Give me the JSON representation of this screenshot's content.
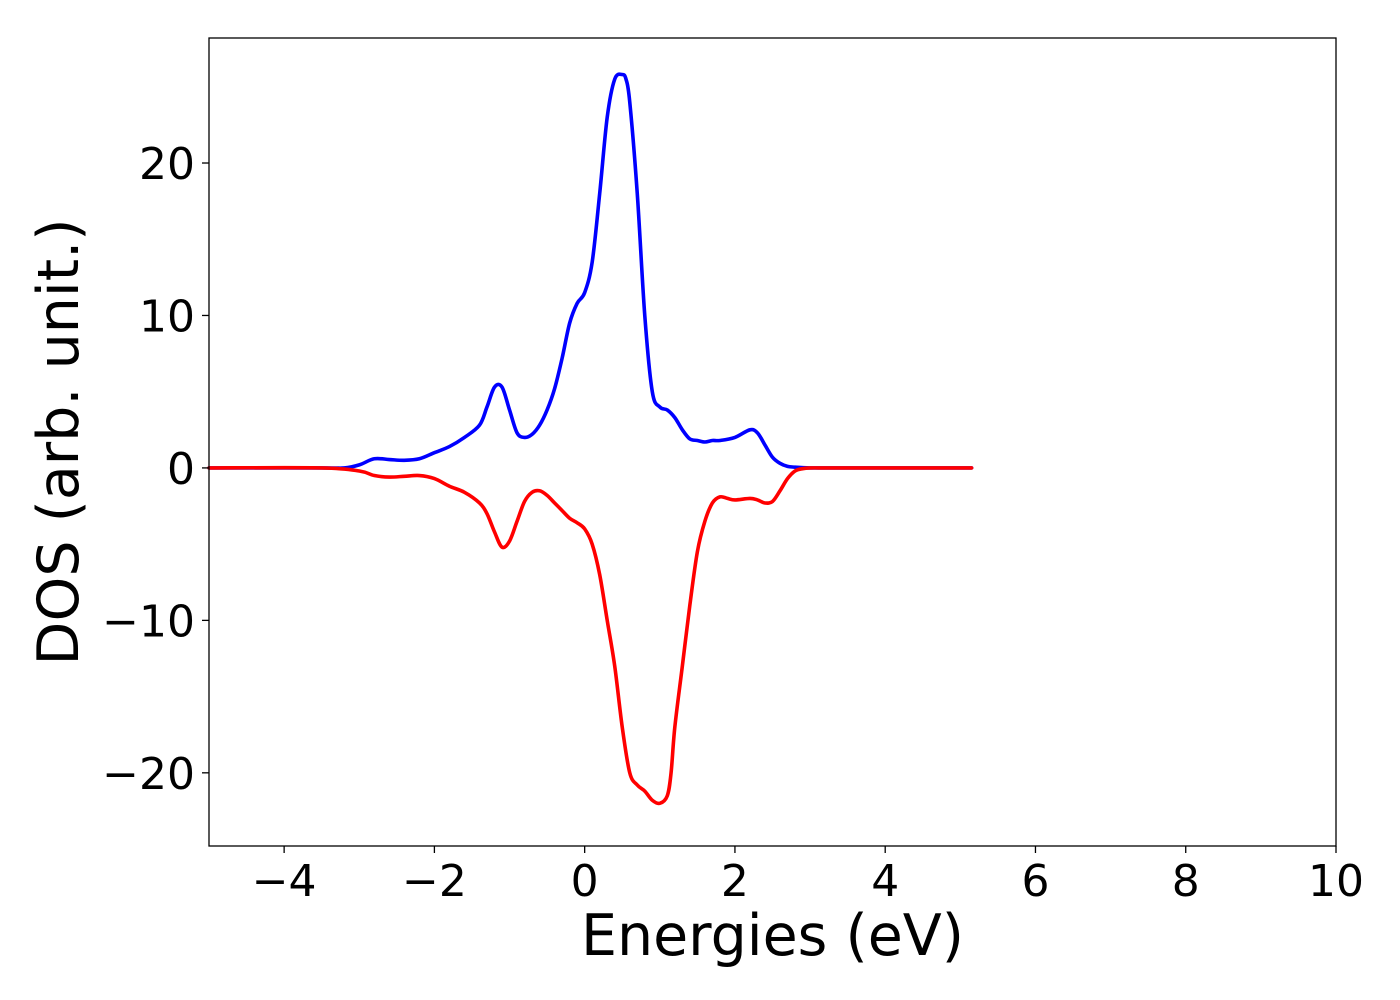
{
  "chart_data": {
    "type": "line",
    "title": "",
    "xlabel": "Energies (eV)",
    "ylabel": "DOS (arb. unit.)",
    "xlim": [
      -5,
      10
    ],
    "ylim": [
      -24.8,
      28.2
    ],
    "grid": false,
    "legend": "none",
    "xticks": [
      {
        "value": -4,
        "label": "−4"
      },
      {
        "value": -2,
        "label": "−2"
      },
      {
        "value": 0,
        "label": "0"
      },
      {
        "value": 2,
        "label": "2"
      },
      {
        "value": 4,
        "label": "4"
      },
      {
        "value": 6,
        "label": "6"
      },
      {
        "value": 8,
        "label": "8"
      },
      {
        "value": 10,
        "label": "10"
      }
    ],
    "yticks": [
      {
        "value": -20,
        "label": "−20"
      },
      {
        "value": -10,
        "label": "−10"
      },
      {
        "value": 0,
        "label": "0"
      },
      {
        "value": 10,
        "label": "10"
      },
      {
        "value": 20,
        "label": "20"
      }
    ],
    "series": [
      {
        "color": "#0000ff",
        "x": [
          -5.0,
          -3.5,
          -3.2,
          -3.0,
          -2.8,
          -2.6,
          -2.4,
          -2.2,
          -2.0,
          -1.8,
          -1.6,
          -1.4,
          -1.3,
          -1.2,
          -1.1,
          -1.0,
          -0.9,
          -0.8,
          -0.7,
          -0.6,
          -0.5,
          -0.4,
          -0.3,
          -0.2,
          -0.1,
          0.0,
          0.1,
          0.2,
          0.3,
          0.4,
          0.5,
          0.55,
          0.6,
          0.7,
          0.8,
          0.9,
          1.0,
          1.1,
          1.2,
          1.3,
          1.4,
          1.5,
          1.6,
          1.7,
          1.8,
          2.0,
          2.2,
          2.3,
          2.4,
          2.5,
          2.6,
          2.7,
          2.8,
          3.0,
          3.2,
          3.5,
          4.0,
          4.5,
          5.15
        ],
        "y": [
          0.0,
          0.0,
          0.0,
          0.2,
          0.6,
          0.55,
          0.5,
          0.6,
          1.0,
          1.4,
          2.0,
          2.8,
          4.0,
          5.3,
          5.3,
          3.8,
          2.3,
          2.0,
          2.2,
          2.8,
          3.8,
          5.2,
          7.2,
          9.5,
          10.8,
          11.5,
          13.5,
          18.0,
          23.0,
          25.5,
          25.8,
          25.5,
          24.0,
          18.0,
          10.0,
          5.0,
          4.0,
          3.8,
          3.3,
          2.5,
          1.9,
          1.8,
          1.7,
          1.8,
          1.8,
          2.0,
          2.5,
          2.3,
          1.5,
          0.7,
          0.3,
          0.1,
          0.05,
          0.0,
          0.0,
          0.0,
          0.0,
          0.0,
          0.0
        ]
      },
      {
        "color": "#ff0000",
        "x": [
          -5.0,
          -3.5,
          -3.0,
          -2.8,
          -2.6,
          -2.4,
          -2.2,
          -2.0,
          -1.8,
          -1.6,
          -1.4,
          -1.3,
          -1.2,
          -1.1,
          -1.0,
          -0.9,
          -0.8,
          -0.7,
          -0.6,
          -0.5,
          -0.4,
          -0.3,
          -0.2,
          -0.1,
          0.0,
          0.1,
          0.2,
          0.3,
          0.4,
          0.5,
          0.6,
          0.7,
          0.8,
          0.9,
          1.0,
          1.1,
          1.15,
          1.2,
          1.3,
          1.4,
          1.5,
          1.6,
          1.7,
          1.8,
          1.9,
          2.0,
          2.2,
          2.3,
          2.4,
          2.5,
          2.6,
          2.7,
          2.8,
          2.9,
          3.0,
          3.2,
          3.5,
          4.0,
          5.15
        ],
        "y": [
          0.0,
          0.0,
          -0.2,
          -0.5,
          -0.6,
          -0.55,
          -0.5,
          -0.7,
          -1.2,
          -1.6,
          -2.3,
          -3.0,
          -4.2,
          -5.2,
          -4.8,
          -3.5,
          -2.2,
          -1.6,
          -1.5,
          -1.8,
          -2.3,
          -2.8,
          -3.3,
          -3.6,
          -4.0,
          -5.0,
          -7.0,
          -10.0,
          -13.0,
          -17.0,
          -20.0,
          -20.8,
          -21.2,
          -21.8,
          -22.0,
          -21.5,
          -20.0,
          -17.0,
          -13.0,
          -9.0,
          -5.5,
          -3.5,
          -2.3,
          -1.9,
          -2.0,
          -2.1,
          -2.0,
          -2.1,
          -2.3,
          -2.2,
          -1.5,
          -0.7,
          -0.2,
          -0.05,
          0.0,
          0.0,
          0.0,
          0.0,
          0.0
        ]
      }
    ]
  }
}
